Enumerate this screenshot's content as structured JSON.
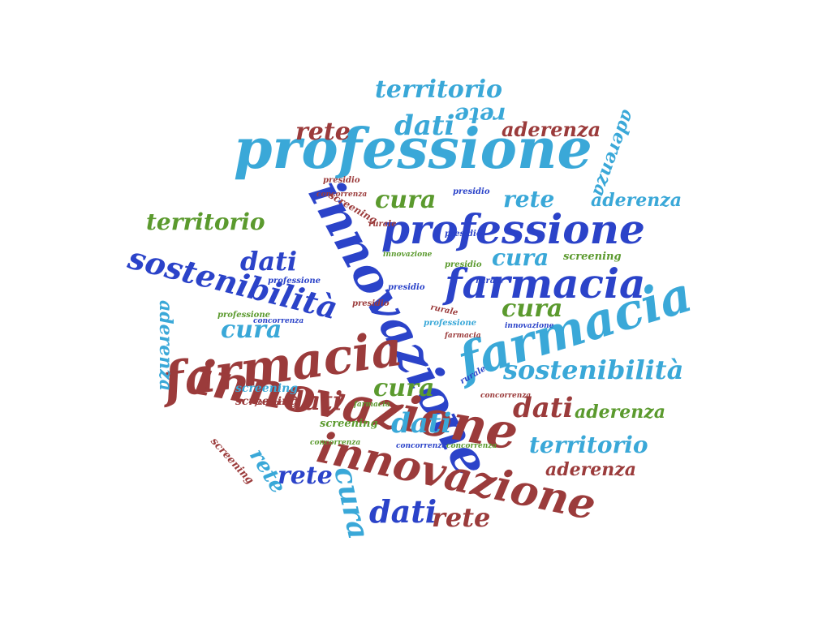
{
  "palette": {
    "light_blue": "#3aa8d8",
    "royal_blue": "#2b43c9",
    "dark_red": "#9b3b3b",
    "green": "#5b9a2e"
  },
  "words": [
    {
      "text": "professione",
      "color": "light_blue"
    },
    {
      "text": "innovazione",
      "color": "royal_blue"
    },
    {
      "text": "professione",
      "color": "royal_blue"
    },
    {
      "text": "farmacia",
      "color": "royal_blue"
    },
    {
      "text": "farmacia",
      "color": "light_blue"
    },
    {
      "text": "farmacia",
      "color": "dark_red"
    },
    {
      "text": "innovazione",
      "color": "dark_red"
    },
    {
      "text": "innovazione",
      "color": "dark_red"
    },
    {
      "text": "sostenibilità",
      "color": "royal_blue"
    },
    {
      "text": "sostenibilità",
      "color": "light_blue"
    },
    {
      "text": "territorio",
      "color": "light_blue"
    },
    {
      "text": "territorio",
      "color": "green"
    },
    {
      "text": "territorio",
      "color": "light_blue"
    },
    {
      "text": "dati",
      "color": "light_blue"
    },
    {
      "text": "dati",
      "color": "royal_blue"
    },
    {
      "text": "dati",
      "color": "dark_red"
    },
    {
      "text": "dati",
      "color": "light_blue"
    },
    {
      "text": "dati",
      "color": "dark_red"
    },
    {
      "text": "dati",
      "color": "royal_blue"
    },
    {
      "text": "rete",
      "color": "dark_red"
    },
    {
      "text": "rete",
      "color": "light_blue"
    },
    {
      "text": "rete",
      "color": "light_blue"
    },
    {
      "text": "rete",
      "color": "royal_blue"
    },
    {
      "text": "rete",
      "color": "light_blue"
    },
    {
      "text": "rete",
      "color": "dark_red"
    },
    {
      "text": "aderenza",
      "color": "dark_red"
    },
    {
      "text": "aderenza",
      "color": "light_blue"
    },
    {
      "text": "aderenza",
      "color": "light_blue"
    },
    {
      "text": "aderenza",
      "color": "green"
    },
    {
      "text": "aderenza",
      "color": "dark_red"
    },
    {
      "text": "aderenza",
      "color": "light_blue"
    },
    {
      "text": "cura",
      "color": "green"
    },
    {
      "text": "cura",
      "color": "light_blue"
    },
    {
      "text": "cura",
      "color": "green"
    },
    {
      "text": "cura",
      "color": "light_blue"
    },
    {
      "text": "cura",
      "color": "green"
    },
    {
      "text": "cura",
      "color": "light_blue"
    },
    {
      "text": "screening",
      "color": "dark_red"
    },
    {
      "text": "screening",
      "color": "light_blue"
    },
    {
      "text": "screening",
      "color": "dark_red"
    },
    {
      "text": "screening",
      "color": "green"
    },
    {
      "text": "screening",
      "color": "dark_red"
    },
    {
      "text": "presidio",
      "color": "dark_red"
    },
    {
      "text": "presidio",
      "color": "royal_blue"
    },
    {
      "text": "presidio",
      "color": "green"
    },
    {
      "text": "presidio",
      "color": "royal_blue"
    },
    {
      "text": "presidio",
      "color": "royal_blue"
    },
    {
      "text": "presidio",
      "color": "dark_red"
    },
    {
      "text": "concorrenza",
      "color": "dark_red"
    },
    {
      "text": "concorrenza",
      "color": "green"
    },
    {
      "text": "concorrenza",
      "color": "royal_blue"
    },
    {
      "text": "concorrenza",
      "color": "green"
    },
    {
      "text": "concorrenza",
      "color": "royal_blue"
    },
    {
      "text": "concorrenza",
      "color": "dark_red"
    },
    {
      "text": "rurale",
      "color": "dark_red"
    },
    {
      "text": "rurale",
      "color": "royal_blue"
    },
    {
      "text": "rurale",
      "color": "dark_red"
    },
    {
      "text": "rurale",
      "color": "royal_blue"
    },
    {
      "text": "professione",
      "color": "royal_blue"
    },
    {
      "text": "professione",
      "color": "green"
    },
    {
      "text": "professione",
      "color": "light_blue"
    },
    {
      "text": "innovazione",
      "color": "green"
    },
    {
      "text": "innovazione",
      "color": "royal_blue"
    },
    {
      "text": "farmacia",
      "color": "dark_red"
    },
    {
      "text": "farmacia",
      "color": "green"
    },
    {
      "text": "farmacia",
      "color": "dark_red"
    },
    {
      "text": "screening",
      "color": "green"
    }
  ]
}
